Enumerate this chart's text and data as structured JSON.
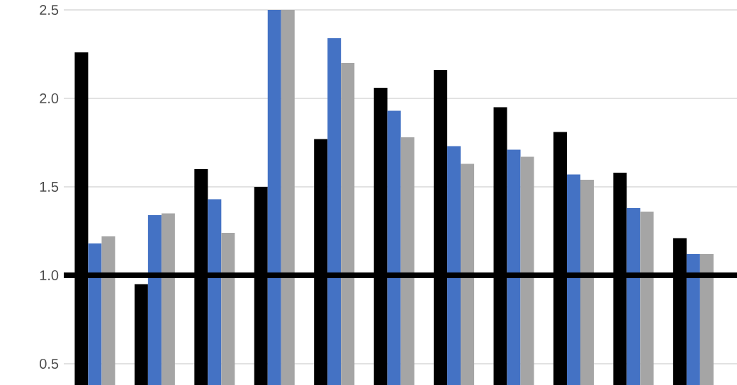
{
  "chart_data": {
    "type": "bar",
    "categories": [
      null,
      null,
      null,
      null,
      null,
      null,
      null,
      null,
      null,
      null,
      null
    ],
    "series": [
      {
        "color": "#000000",
        "values": [
          2.26,
          0.95,
          1.6,
          1.5,
          1.77,
          2.06,
          2.16,
          1.95,
          1.81,
          1.58,
          1.21
        ]
      },
      {
        "color": "#4472c4",
        "values": [
          1.18,
          1.34,
          1.43,
          2.5,
          2.34,
          1.93,
          1.73,
          1.71,
          1.57,
          1.38,
          1.12
        ]
      },
      {
        "color": "#a5a5a5",
        "values": [
          1.22,
          1.35,
          1.24,
          2.5,
          2.2,
          1.78,
          1.63,
          1.67,
          1.54,
          1.36,
          1.12
        ]
      }
    ],
    "ylim": [
      0.38,
      2.5
    ],
    "yticks": [
      {
        "value": 0.5,
        "label": "0.5"
      },
      {
        "value": 1.0,
        "label": "1.0"
      },
      {
        "value": 1.5,
        "label": "1.5"
      },
      {
        "value": 2.0,
        "label": "2.0"
      },
      {
        "value": 2.5,
        "label": "2.5"
      }
    ],
    "grid": "y",
    "tick_labels": "y",
    "ref_lines": [
      {
        "axis": "y",
        "value": 1.0,
        "color": "#000000"
      }
    ]
  }
}
